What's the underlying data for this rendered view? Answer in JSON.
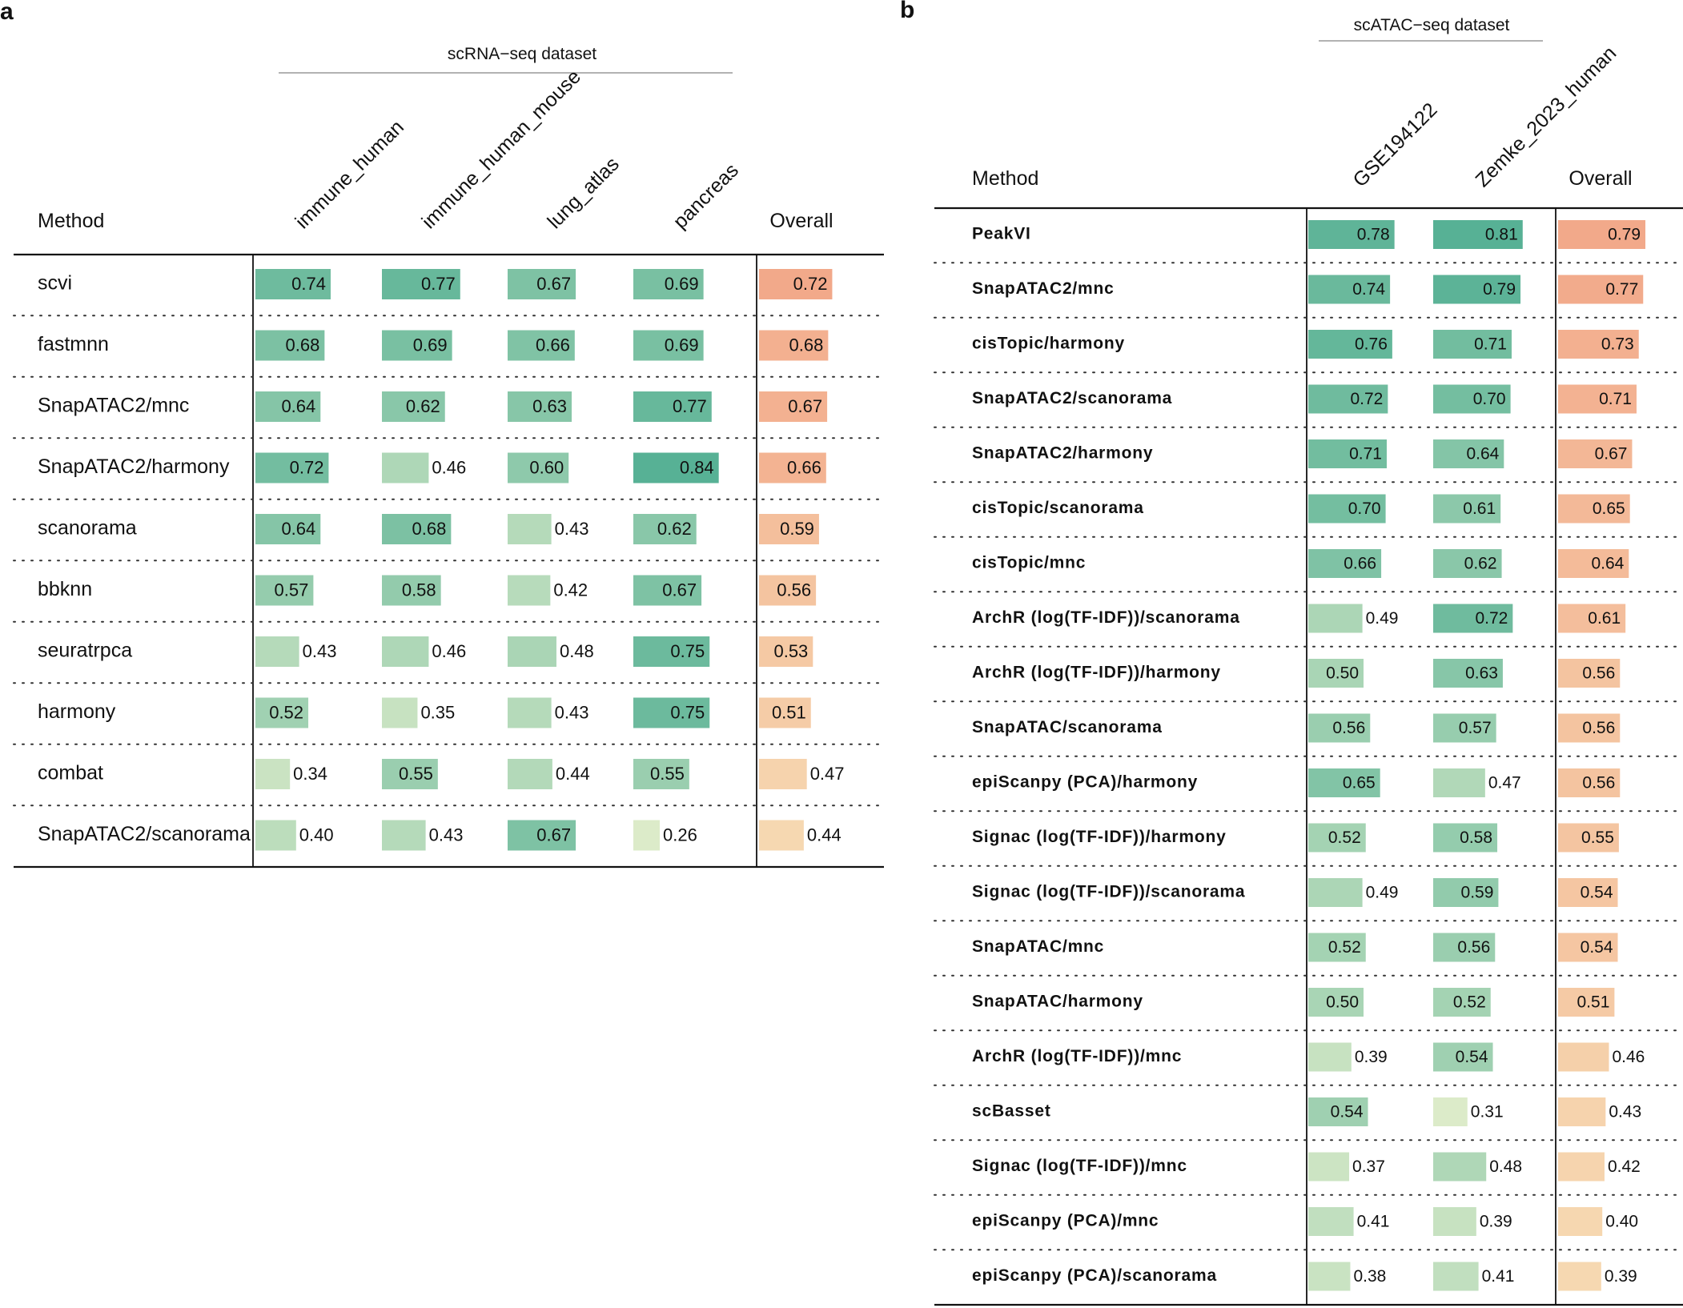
{
  "chart_data": [
    {
      "type": "table",
      "panel": "a",
      "group_title": "scRNA−seq dataset",
      "method_header": "Method",
      "columns": [
        "immune_human",
        "immune_human_mouse",
        "lung_atlas",
        "pancreas"
      ],
      "overall_header": "Overall",
      "value_range": [
        0,
        1
      ],
      "rows": [
        {
          "method": "scvi",
          "values": [
            0.74,
            0.77,
            0.67,
            0.69
          ],
          "overall": 0.72
        },
        {
          "method": "fastmnn",
          "values": [
            0.68,
            0.69,
            0.66,
            0.69
          ],
          "overall": 0.68
        },
        {
          "method": "SnapATAC2/mnc",
          "values": [
            0.64,
            0.62,
            0.63,
            0.77
          ],
          "overall": 0.67
        },
        {
          "method": "SnapATAC2/harmony",
          "values": [
            0.72,
            0.46,
            0.6,
            0.84
          ],
          "overall": 0.66
        },
        {
          "method": "scanorama",
          "values": [
            0.64,
            0.68,
            0.43,
            0.62
          ],
          "overall": 0.59
        },
        {
          "method": "bbknn",
          "values": [
            0.57,
            0.58,
            0.42,
            0.67
          ],
          "overall": 0.56
        },
        {
          "method": "seuratrpca",
          "values": [
            0.43,
            0.46,
            0.48,
            0.75
          ],
          "overall": 0.53
        },
        {
          "method": "harmony",
          "values": [
            0.52,
            0.35,
            0.43,
            0.75
          ],
          "overall": 0.51
        },
        {
          "method": "combat",
          "values": [
            0.34,
            0.55,
            0.44,
            0.55
          ],
          "overall": 0.47
        },
        {
          "method": "SnapATAC2/scanorama",
          "values": [
            0.4,
            0.43,
            0.67,
            0.26
          ],
          "overall": 0.44
        }
      ]
    },
    {
      "type": "table",
      "panel": "b",
      "group_title": "scATAC−seq dataset",
      "method_header": "Method",
      "columns": [
        "GSE194122",
        "Zemke_2023_human"
      ],
      "overall_header": "Overall",
      "value_range": [
        0,
        1
      ],
      "rows": [
        {
          "method": "PeakVI",
          "values": [
            0.78,
            0.81
          ],
          "overall": 0.79
        },
        {
          "method": "SnapATAC2/mnc",
          "values": [
            0.74,
            0.79
          ],
          "overall": 0.77
        },
        {
          "method": "cisTopic/harmony",
          "values": [
            0.76,
            0.71
          ],
          "overall": 0.73
        },
        {
          "method": "SnapATAC2/scanorama",
          "values": [
            0.72,
            0.7
          ],
          "overall": 0.71
        },
        {
          "method": "SnapATAC2/harmony",
          "values": [
            0.71,
            0.64
          ],
          "overall": 0.67
        },
        {
          "method": "cisTopic/scanorama",
          "values": [
            0.7,
            0.61
          ],
          "overall": 0.65
        },
        {
          "method": "cisTopic/mnc",
          "values": [
            0.66,
            0.62
          ],
          "overall": 0.64
        },
        {
          "method": "ArchR (log(TF-IDF))/scanorama",
          "values": [
            0.49,
            0.72
          ],
          "overall": 0.61
        },
        {
          "method": "ArchR (log(TF-IDF))/harmony",
          "values": [
            0.5,
            0.63
          ],
          "overall": 0.56
        },
        {
          "method": "SnapATAC/scanorama",
          "values": [
            0.56,
            0.57
          ],
          "overall": 0.56
        },
        {
          "method": "epiScanpy (PCA)/harmony",
          "values": [
            0.65,
            0.47
          ],
          "overall": 0.56
        },
        {
          "method": "Signac (log(TF-IDF))/harmony",
          "values": [
            0.52,
            0.58
          ],
          "overall": 0.55
        },
        {
          "method": "Signac (log(TF-IDF))/scanorama",
          "values": [
            0.49,
            0.59
          ],
          "overall": 0.54
        },
        {
          "method": "SnapATAC/mnc",
          "values": [
            0.52,
            0.56
          ],
          "overall": 0.54
        },
        {
          "method": "SnapATAC/harmony",
          "values": [
            0.5,
            0.52
          ],
          "overall": 0.51
        },
        {
          "method": "ArchR (log(TF-IDF))/mnc",
          "values": [
            0.39,
            0.54
          ],
          "overall": 0.46
        },
        {
          "method": "scBasset",
          "values": [
            0.54,
            0.31
          ],
          "overall": 0.43
        },
        {
          "method": "Signac (log(TF-IDF))/mnc",
          "values": [
            0.37,
            0.48
          ],
          "overall": 0.42
        },
        {
          "method": "epiScanpy (PCA)/mnc",
          "values": [
            0.41,
            0.39
          ],
          "overall": 0.4
        },
        {
          "method": "epiScanpy (PCA)/scanorama",
          "values": [
            0.38,
            0.41
          ],
          "overall": 0.39
        }
      ]
    }
  ],
  "colors": {
    "green_low": "#dcebc9",
    "green_high": "#57b195",
    "orange_low": "#f6d8b1",
    "orange_high": "#f2a98a",
    "rule": "#111111",
    "title_rule": "#999999"
  }
}
